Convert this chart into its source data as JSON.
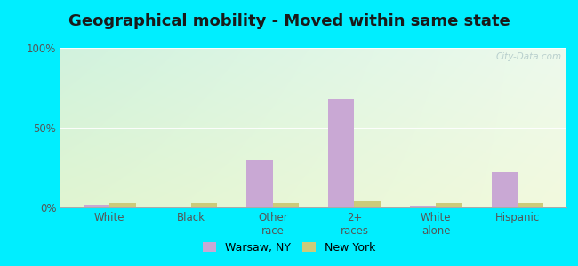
{
  "title": "Geographical mobility - Moved within same state",
  "categories": [
    "White",
    "Black",
    "Other\nrace",
    "2+\nraces",
    "White\nalone",
    "Hispanic"
  ],
  "warsaw_values": [
    1.5,
    0,
    30,
    68,
    1.0,
    22
  ],
  "newyork_values": [
    3.0,
    3.0,
    3.0,
    4.0,
    3.0,
    3.0
  ],
  "warsaw_color": "#c9a8d4",
  "newyork_color": "#cccb7a",
  "bar_width": 0.32,
  "ylim": [
    0,
    100
  ],
  "yticks": [
    0,
    50,
    100
  ],
  "ytick_labels": [
    "0%",
    "50%",
    "100%"
  ],
  "outer_background": "#00eeff",
  "title_fontsize": 13,
  "legend_warsaw": "Warsaw, NY",
  "legend_newyork": "New York",
  "watermark": "City-Data.com",
  "grid_color": "#e0e0e0"
}
